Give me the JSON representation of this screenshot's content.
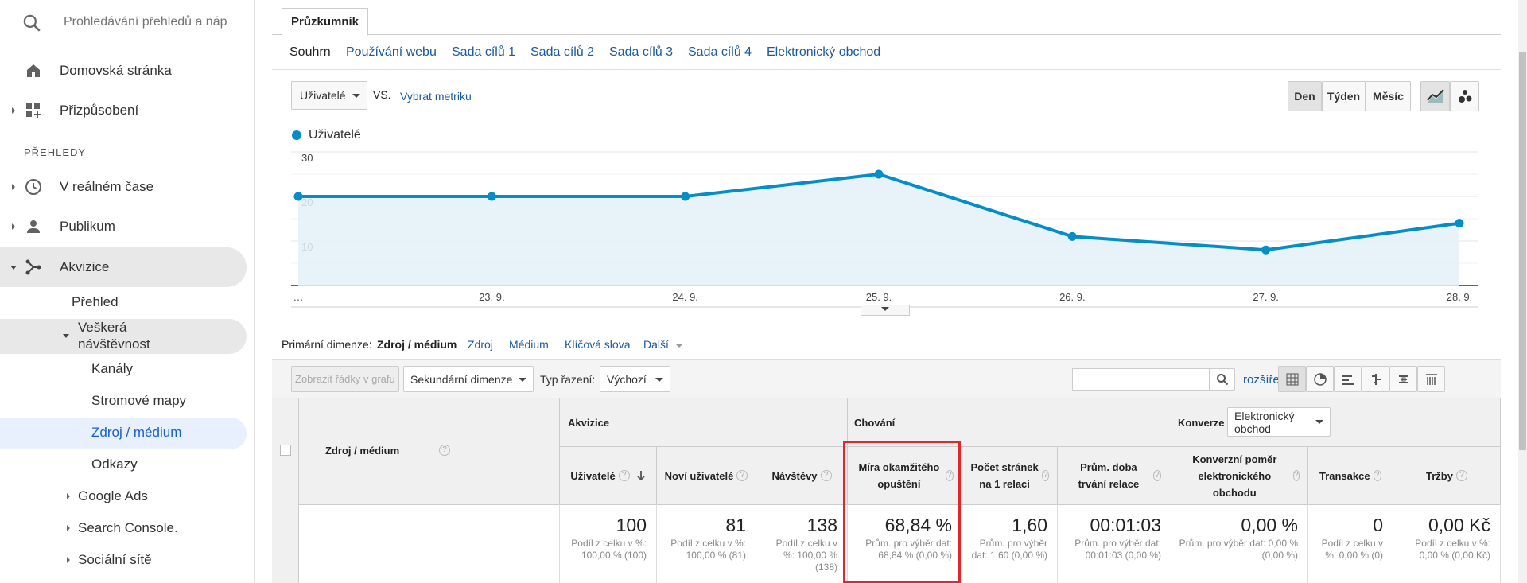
{
  "sidebar": {
    "search_placeholder": "Prohledávání přehledů a náp",
    "home": "Domovská stránka",
    "customize": "Přizpůsobení",
    "section_title": "PŘEHLEDY",
    "realtime": "V reálném čase",
    "audience": "Publikum",
    "acquisition": "Akvizice",
    "overview": "Přehled",
    "all_traffic_line1": "Veškerá",
    "all_traffic_line2": "návštěvnost",
    "channels": "Kanály",
    "treemaps": "Stromové mapy",
    "source_medium": "Zdroj / médium",
    "referrals": "Odkazy",
    "google_ads": "Google Ads",
    "search_console": "Search Console.",
    "social": "Sociální sítě"
  },
  "explorer_tab": "Průzkumník",
  "subnav": [
    "Souhrn",
    "Používání webu",
    "Sada cílů 1",
    "Sada cílů 2",
    "Sada cílů 3",
    "Sada cílů 4",
    "Elektronický obchod"
  ],
  "metric_select": "Uživatelé",
  "vs_label": "VS.",
  "select_metric_link": "Vybrat metriku",
  "period_buttons": [
    "Den",
    "Týden",
    "Měsíc"
  ],
  "chart_data": {
    "type": "area",
    "series": [
      {
        "name": "Uživatelé",
        "values": [
          20,
          20,
          20,
          25,
          11,
          8,
          14
        ]
      }
    ],
    "x": [
      "…",
      "23. 9.",
      "24. 9.",
      "25. 9.",
      "26. 9.",
      "27. 9.",
      "28. 9."
    ],
    "yticks": [
      10,
      20,
      30
    ],
    "ylim": [
      0,
      30
    ],
    "color": "#058dc7",
    "fill": "#e3f1f8"
  },
  "primary_dimension": {
    "label": "Primární dimenze:",
    "active": "Zdroj / médium",
    "options": [
      "Zdroj",
      "Médium",
      "Klíčová slova",
      "Další"
    ]
  },
  "toolbar": {
    "plot_rows": "Zobrazit řádky v grafu",
    "secondary_dimension": "Sekundární dimenze",
    "sort_type_label": "Typ řazení:",
    "sort_type_value": "Výchozí",
    "advanced": "rozšířený"
  },
  "table": {
    "dimension_header": "Zdroj / médium",
    "group_acquisition": "Akvizice",
    "group_behavior": "Chování",
    "group_conversions": "Konverze",
    "conversions_select": "Elektronický obchod",
    "columns": [
      {
        "h": "Uživatelé",
        "big": "100",
        "small": "Podíl z celku v %: 100,00 % (100)"
      },
      {
        "h": "Noví uživatelé",
        "big": "81",
        "small": "Podíl z celku v %: 100,00 % (81)"
      },
      {
        "h": "Návštěvy",
        "big": "138",
        "small": "Podíl z celku v %: 100,00 % (138)"
      },
      {
        "h": "Míra okamžitého opuštění",
        "big": "68,84 %",
        "small": "Prům. pro výběr dat: 68,84 % (0,00 %)"
      },
      {
        "h": "Počet stránek na 1 relaci",
        "big": "1,60",
        "small": "Prům. pro výběr dat: 1,60 (0,00 %)"
      },
      {
        "h": "Prům. doba trvání relace",
        "big": "00:01:03",
        "small": "Prům. pro výběr dat: 00:01:03 (0,00 %)"
      },
      {
        "h": "Konverzní poměr elektronického obchodu",
        "big": "0,00 %",
        "small": "Prům. pro výběr dat: 0,00 % (0,00 %)"
      },
      {
        "h": "Transakce",
        "big": "0",
        "small": "Podíl z celku v %: 0,00 % (0)"
      },
      {
        "h": "Tržby",
        "big": "0,00 Kč",
        "small": "Podíl z celku v %: 0,00 % (0,00 Kč)"
      }
    ]
  },
  "colors": {
    "accent": "#058dc7",
    "link": "#1a5aa0",
    "highlight": "#e4262c"
  }
}
